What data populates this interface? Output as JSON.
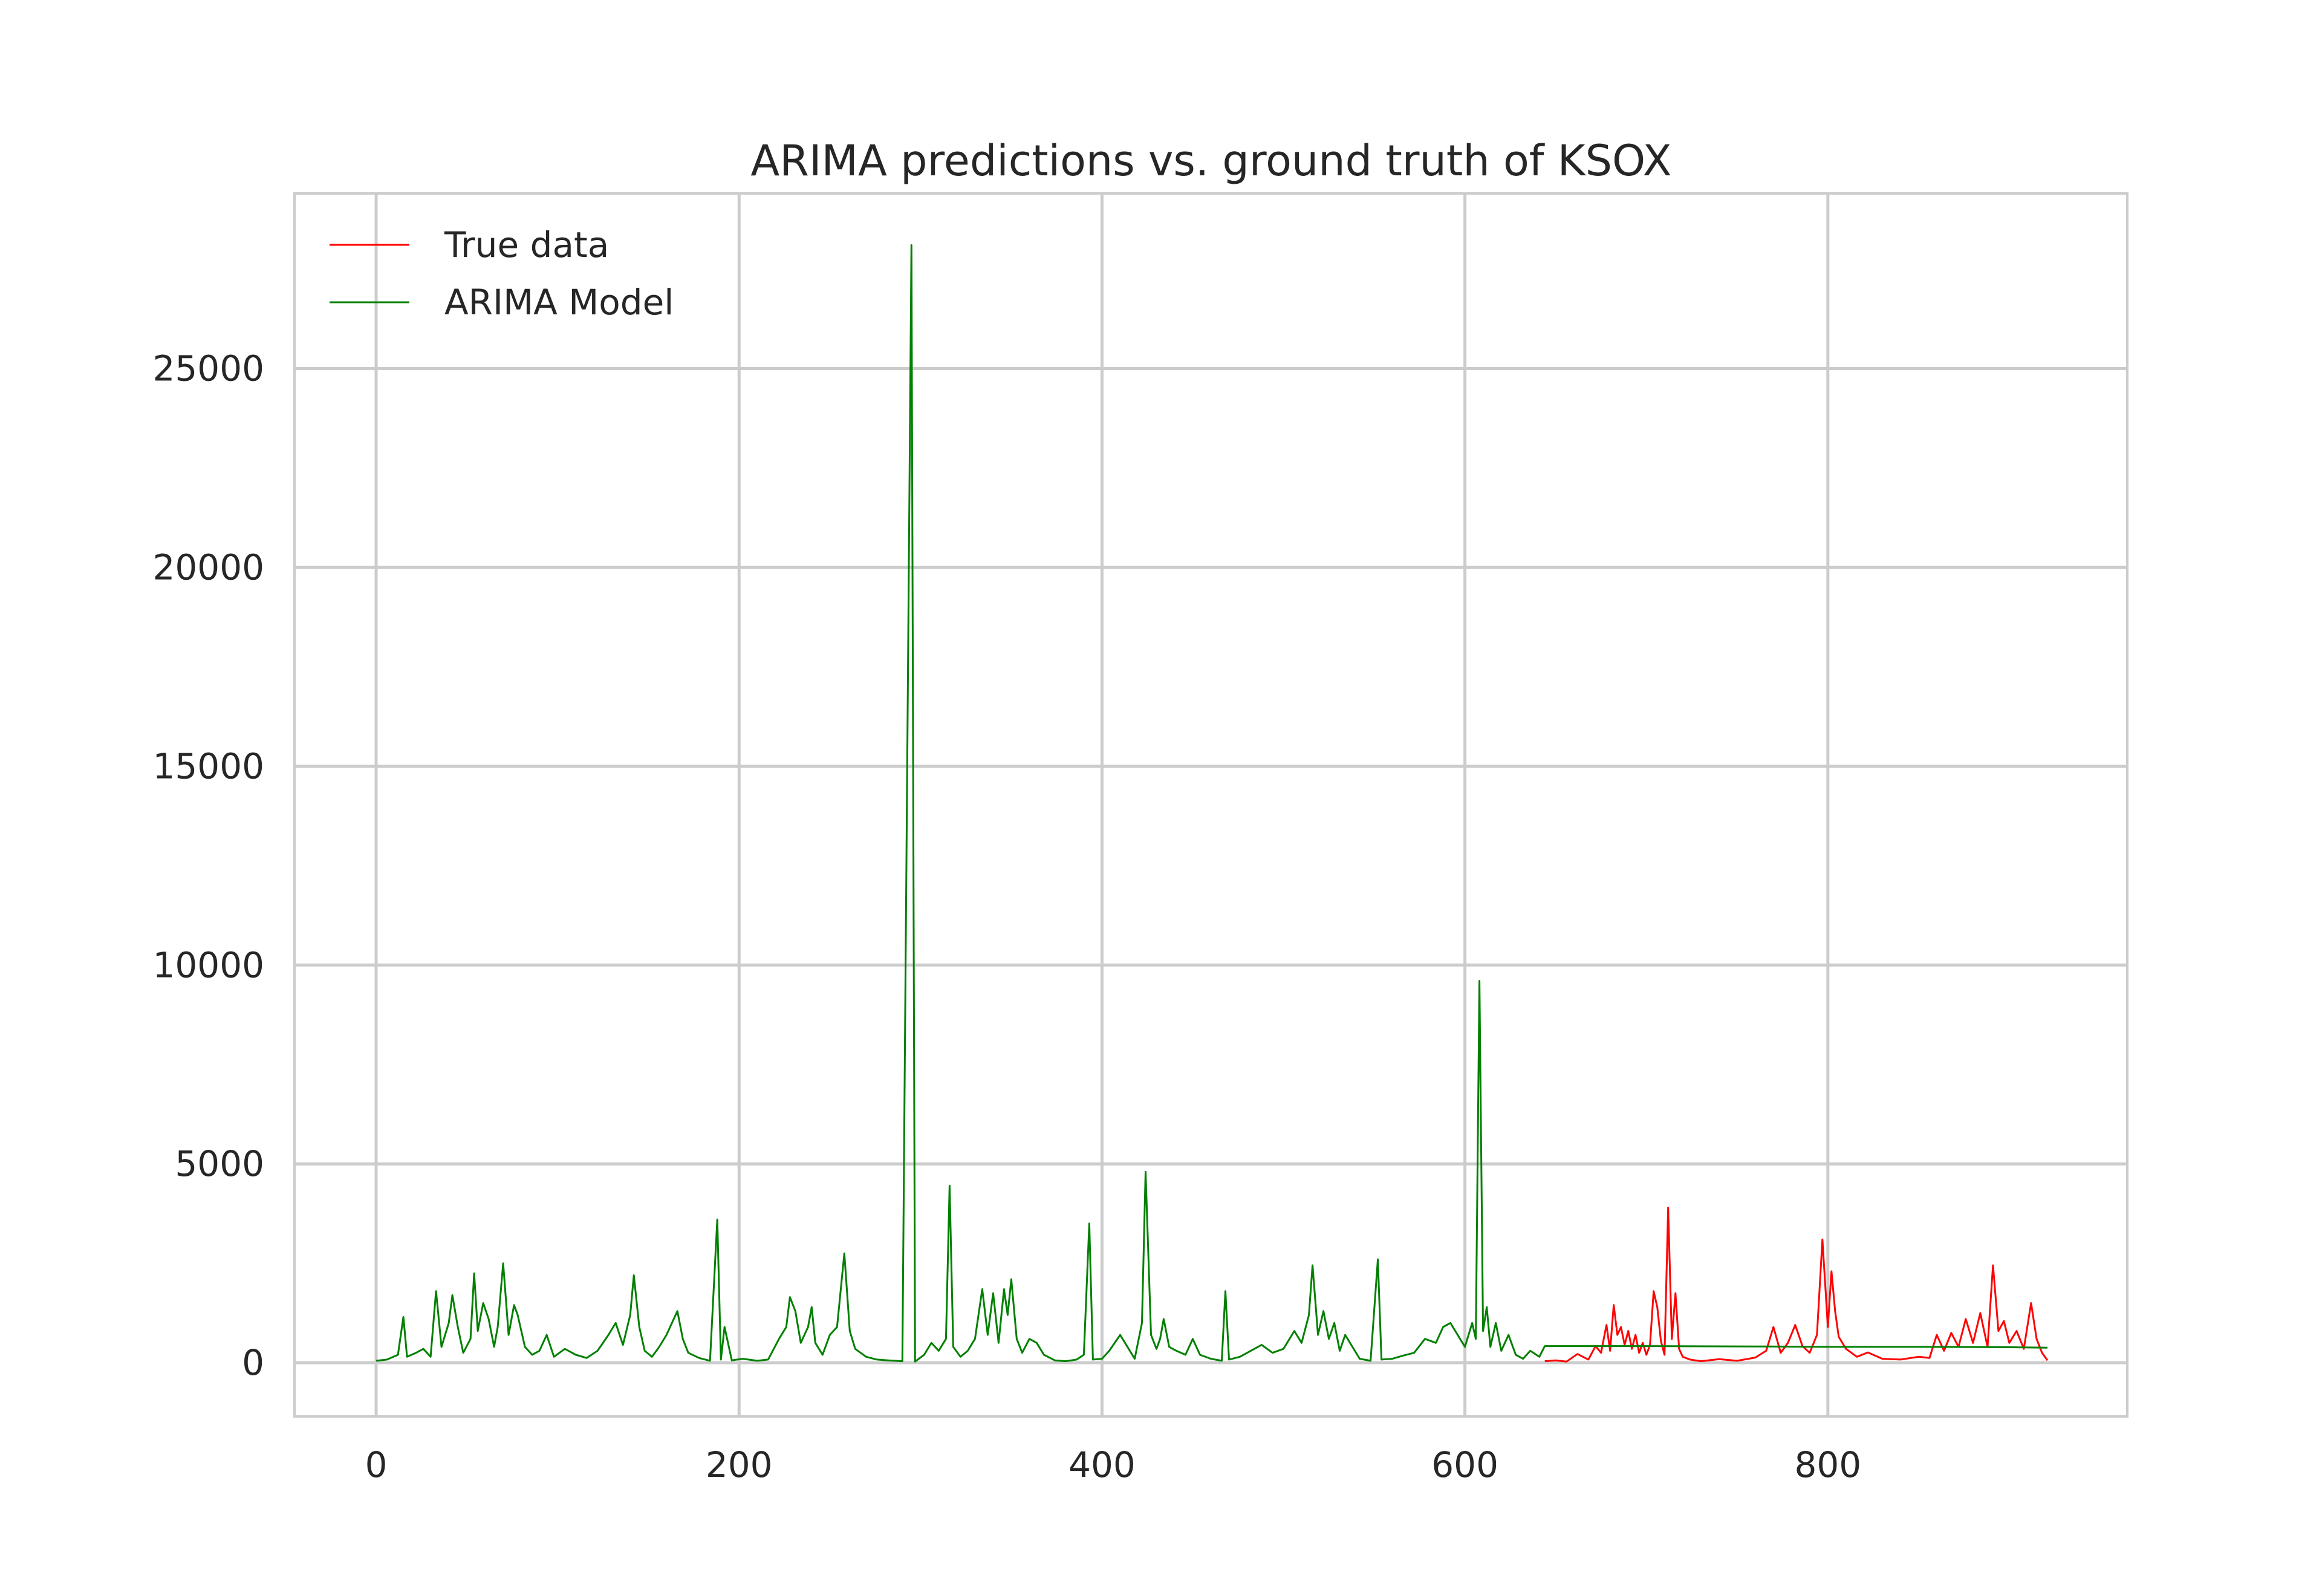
{
  "chart_data": {
    "type": "line",
    "title": "ARIMA predictions vs. ground truth of KSOX",
    "xlabel": "",
    "ylabel": "",
    "xlim": [
      -45,
      965
    ],
    "ylim": [
      -1350,
      29400
    ],
    "grid": true,
    "legend_position": "top-left",
    "x_ticks": [
      0,
      200,
      400,
      600,
      800
    ],
    "y_ticks": [
      0,
      5000,
      10000,
      15000,
      20000,
      25000
    ],
    "series": [
      {
        "name": "True data",
        "color": "#ff0000",
        "points": [
          [
            644,
            40
          ],
          [
            650,
            60
          ],
          [
            656,
            30
          ],
          [
            662,
            220
          ],
          [
            668,
            80
          ],
          [
            672,
            420
          ],
          [
            675,
            250
          ],
          [
            678,
            950
          ],
          [
            680,
            300
          ],
          [
            682,
            1450
          ],
          [
            684,
            700
          ],
          [
            686,
            900
          ],
          [
            688,
            450
          ],
          [
            690,
            800
          ],
          [
            692,
            350
          ],
          [
            694,
            700
          ],
          [
            696,
            250
          ],
          [
            698,
            500
          ],
          [
            700,
            200
          ],
          [
            702,
            450
          ],
          [
            704,
            1800
          ],
          [
            706,
            1400
          ],
          [
            708,
            550
          ],
          [
            710,
            200
          ],
          [
            712,
            3900
          ],
          [
            714,
            600
          ],
          [
            716,
            1750
          ],
          [
            718,
            350
          ],
          [
            720,
            150
          ],
          [
            724,
            80
          ],
          [
            730,
            40
          ],
          [
            740,
            90
          ],
          [
            750,
            50
          ],
          [
            760,
            130
          ],
          [
            766,
            300
          ],
          [
            770,
            900
          ],
          [
            774,
            250
          ],
          [
            778,
            500
          ],
          [
            782,
            950
          ],
          [
            786,
            420
          ],
          [
            790,
            250
          ],
          [
            794,
            700
          ],
          [
            797,
            3100
          ],
          [
            800,
            900
          ],
          [
            802,
            2300
          ],
          [
            804,
            1300
          ],
          [
            806,
            650
          ],
          [
            810,
            350
          ],
          [
            816,
            150
          ],
          [
            822,
            260
          ],
          [
            830,
            100
          ],
          [
            840,
            80
          ],
          [
            850,
            150
          ],
          [
            856,
            120
          ],
          [
            860,
            700
          ],
          [
            864,
            300
          ],
          [
            868,
            750
          ],
          [
            872,
            400
          ],
          [
            876,
            1100
          ],
          [
            880,
            500
          ],
          [
            884,
            1250
          ],
          [
            888,
            400
          ],
          [
            891,
            2450
          ],
          [
            894,
            800
          ],
          [
            897,
            1050
          ],
          [
            900,
            500
          ],
          [
            904,
            800
          ],
          [
            908,
            350
          ],
          [
            912,
            1500
          ],
          [
            915,
            600
          ],
          [
            918,
            250
          ],
          [
            921,
            60
          ]
        ]
      },
      {
        "name": "ARIMA Model",
        "color": "#008000",
        "points": [
          [
            0,
            50
          ],
          [
            6,
            80
          ],
          [
            12,
            200
          ],
          [
            15,
            1150
          ],
          [
            17,
            150
          ],
          [
            22,
            250
          ],
          [
            26,
            350
          ],
          [
            30,
            150
          ],
          [
            33,
            1800
          ],
          [
            36,
            400
          ],
          [
            40,
            1000
          ],
          [
            42,
            1700
          ],
          [
            45,
            900
          ],
          [
            48,
            250
          ],
          [
            52,
            600
          ],
          [
            54,
            2250
          ],
          [
            56,
            800
          ],
          [
            59,
            1500
          ],
          [
            62,
            1100
          ],
          [
            65,
            400
          ],
          [
            67,
            900
          ],
          [
            70,
            2500
          ],
          [
            73,
            700
          ],
          [
            76,
            1450
          ],
          [
            78,
            1200
          ],
          [
            82,
            400
          ],
          [
            86,
            200
          ],
          [
            90,
            300
          ],
          [
            94,
            700
          ],
          [
            98,
            150
          ],
          [
            104,
            350
          ],
          [
            110,
            200
          ],
          [
            116,
            120
          ],
          [
            122,
            300
          ],
          [
            128,
            700
          ],
          [
            132,
            1000
          ],
          [
            136,
            450
          ],
          [
            140,
            1200
          ],
          [
            142,
            2200
          ],
          [
            145,
            900
          ],
          [
            148,
            300
          ],
          [
            152,
            150
          ],
          [
            156,
            400
          ],
          [
            160,
            700
          ],
          [
            163,
            1000
          ],
          [
            166,
            1300
          ],
          [
            169,
            600
          ],
          [
            172,
            250
          ],
          [
            178,
            120
          ],
          [
            184,
            50
          ],
          [
            188,
            3600
          ],
          [
            190,
            80
          ],
          [
            192,
            900
          ],
          [
            196,
            60
          ],
          [
            202,
            100
          ],
          [
            210,
            50
          ],
          [
            216,
            80
          ],
          [
            222,
            600
          ],
          [
            226,
            900
          ],
          [
            228,
            1650
          ],
          [
            231,
            1300
          ],
          [
            234,
            500
          ],
          [
            238,
            900
          ],
          [
            240,
            1400
          ],
          [
            242,
            500
          ],
          [
            246,
            200
          ],
          [
            250,
            700
          ],
          [
            254,
            900
          ],
          [
            258,
            2750
          ],
          [
            261,
            800
          ],
          [
            264,
            350
          ],
          [
            270,
            150
          ],
          [
            276,
            80
          ],
          [
            282,
            60
          ],
          [
            290,
            40
          ],
          [
            295,
            28100
          ],
          [
            297,
            30
          ],
          [
            302,
            200
          ],
          [
            306,
            500
          ],
          [
            310,
            300
          ],
          [
            314,
            600
          ],
          [
            316,
            4450
          ],
          [
            318,
            400
          ],
          [
            322,
            150
          ],
          [
            326,
            300
          ],
          [
            330,
            600
          ],
          [
            334,
            1850
          ],
          [
            337,
            700
          ],
          [
            340,
            1750
          ],
          [
            343,
            500
          ],
          [
            346,
            1850
          ],
          [
            348,
            1200
          ],
          [
            350,
            2100
          ],
          [
            353,
            600
          ],
          [
            356,
            250
          ],
          [
            360,
            600
          ],
          [
            364,
            500
          ],
          [
            368,
            200
          ],
          [
            374,
            60
          ],
          [
            380,
            40
          ],
          [
            386,
            80
          ],
          [
            390,
            200
          ],
          [
            393,
            3500
          ],
          [
            395,
            80
          ],
          [
            400,
            100
          ],
          [
            404,
            300
          ],
          [
            410,
            700
          ],
          [
            414,
            400
          ],
          [
            418,
            100
          ],
          [
            422,
            1000
          ],
          [
            424,
            4800
          ],
          [
            427,
            700
          ],
          [
            430,
            350
          ],
          [
            432,
            600
          ],
          [
            434,
            1100
          ],
          [
            437,
            400
          ],
          [
            441,
            300
          ],
          [
            446,
            200
          ],
          [
            450,
            600
          ],
          [
            454,
            200
          ],
          [
            460,
            100
          ],
          [
            466,
            50
          ],
          [
            468,
            1800
          ],
          [
            470,
            80
          ],
          [
            476,
            150
          ],
          [
            482,
            300
          ],
          [
            488,
            450
          ],
          [
            494,
            250
          ],
          [
            500,
            350
          ],
          [
            506,
            800
          ],
          [
            510,
            500
          ],
          [
            514,
            1200
          ],
          [
            516,
            2450
          ],
          [
            519,
            700
          ],
          [
            522,
            1300
          ],
          [
            525,
            600
          ],
          [
            528,
            1000
          ],
          [
            531,
            300
          ],
          [
            534,
            700
          ],
          [
            538,
            400
          ],
          [
            542,
            100
          ],
          [
            548,
            50
          ],
          [
            552,
            2600
          ],
          [
            554,
            80
          ],
          [
            560,
            100
          ],
          [
            566,
            180
          ],
          [
            572,
            250
          ],
          [
            578,
            600
          ],
          [
            584,
            500
          ],
          [
            588,
            900
          ],
          [
            592,
            1000
          ],
          [
            596,
            700
          ],
          [
            600,
            400
          ],
          [
            604,
            1000
          ],
          [
            606,
            600
          ],
          [
            608,
            9600
          ],
          [
            610,
            800
          ],
          [
            612,
            1400
          ],
          [
            614,
            400
          ],
          [
            617,
            1000
          ],
          [
            620,
            300
          ],
          [
            624,
            700
          ],
          [
            628,
            200
          ],
          [
            632,
            100
          ],
          [
            636,
            300
          ],
          [
            641,
            150
          ],
          [
            644,
            420
          ],
          [
            700,
            420
          ],
          [
            760,
            410
          ],
          [
            800,
            400
          ],
          [
            850,
            400
          ],
          [
            900,
            390
          ],
          [
            921,
            380
          ]
        ]
      }
    ]
  }
}
